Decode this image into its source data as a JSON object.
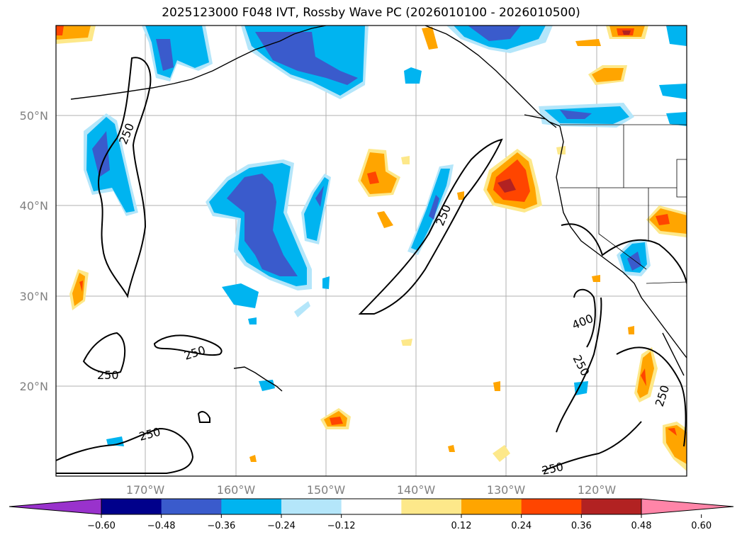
{
  "title": "2025123000 F048 IVT, Rossby Wave PC (2026010100 - 2026010500)",
  "map": {
    "region": "North Pacific / West Coast of North America",
    "lat_labels": [
      "50°N",
      "40°N",
      "30°N",
      "20°N"
    ],
    "lon_labels": [
      "170°W",
      "160°W",
      "150°W",
      "140°W",
      "130°W",
      "120°W"
    ],
    "lat_values": [
      50,
      40,
      30,
      20
    ],
    "lon_values": [
      -170,
      -160,
      -150,
      -140,
      -130,
      -120
    ],
    "contour_labels": [
      "250",
      "250",
      "250",
      "250",
      "250",
      "250",
      "250",
      "250",
      "400"
    ]
  },
  "colorbar": {
    "ticks": [
      "−0.60",
      "−0.48",
      "−0.36",
      "−0.24",
      "−0.12",
      "0.12",
      "0.24",
      "0.36",
      "0.48",
      "0.60"
    ],
    "colors": [
      "#9932cc",
      "#00008b",
      "#3a5bcc",
      "#00b4f0",
      "#b4e6fa",
      "#ffffff",
      "#fde88a",
      "#ffa500",
      "#ff4500",
      "#b22222",
      "#ff85a8"
    ]
  },
  "colors": {
    "neg_strong": "#3a5bcc",
    "neg_mid": "#00b4f0",
    "neg_weak": "#b4e6fa",
    "pos_weak": "#fde88a",
    "pos_mid": "#ffa500",
    "pos_strong": "#ff4500",
    "pos_max": "#b22222"
  }
}
